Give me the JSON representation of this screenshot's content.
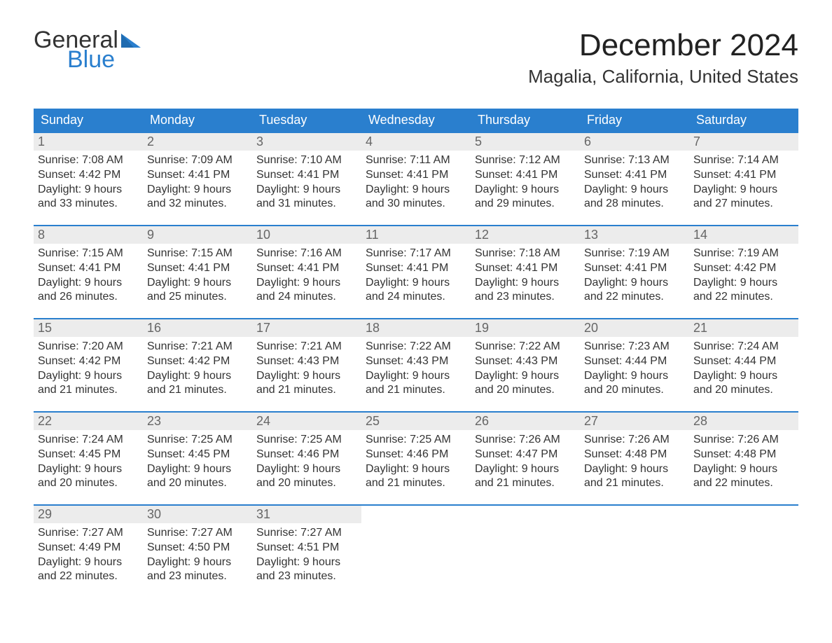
{
  "logo": {
    "text_top": "General",
    "text_bottom": "Blue",
    "accent_color": "#2a7fce"
  },
  "title": "December 2024",
  "location": "Magalia, California, United States",
  "colors": {
    "header_bg": "#2a7fce",
    "header_text": "#ffffff",
    "daynum_bg": "#ececec",
    "daynum_text": "#666666",
    "body_text": "#333333",
    "week_border": "#2a7fce",
    "background": "#ffffff"
  },
  "typography": {
    "title_fontsize": 44,
    "location_fontsize": 26,
    "weekday_fontsize": 18,
    "daynum_fontsize": 18,
    "cell_fontsize": 16,
    "logo_fontsize": 34
  },
  "weekdays": [
    "Sunday",
    "Monday",
    "Tuesday",
    "Wednesday",
    "Thursday",
    "Friday",
    "Saturday"
  ],
  "weeks": [
    [
      {
        "day": "1",
        "sunrise": "Sunrise: 7:08 AM",
        "sunset": "Sunset: 4:42 PM",
        "dl1": "Daylight: 9 hours",
        "dl2": "and 33 minutes."
      },
      {
        "day": "2",
        "sunrise": "Sunrise: 7:09 AM",
        "sunset": "Sunset: 4:41 PM",
        "dl1": "Daylight: 9 hours",
        "dl2": "and 32 minutes."
      },
      {
        "day": "3",
        "sunrise": "Sunrise: 7:10 AM",
        "sunset": "Sunset: 4:41 PM",
        "dl1": "Daylight: 9 hours",
        "dl2": "and 31 minutes."
      },
      {
        "day": "4",
        "sunrise": "Sunrise: 7:11 AM",
        "sunset": "Sunset: 4:41 PM",
        "dl1": "Daylight: 9 hours",
        "dl2": "and 30 minutes."
      },
      {
        "day": "5",
        "sunrise": "Sunrise: 7:12 AM",
        "sunset": "Sunset: 4:41 PM",
        "dl1": "Daylight: 9 hours",
        "dl2": "and 29 minutes."
      },
      {
        "day": "6",
        "sunrise": "Sunrise: 7:13 AM",
        "sunset": "Sunset: 4:41 PM",
        "dl1": "Daylight: 9 hours",
        "dl2": "and 28 minutes."
      },
      {
        "day": "7",
        "sunrise": "Sunrise: 7:14 AM",
        "sunset": "Sunset: 4:41 PM",
        "dl1": "Daylight: 9 hours",
        "dl2": "and 27 minutes."
      }
    ],
    [
      {
        "day": "8",
        "sunrise": "Sunrise: 7:15 AM",
        "sunset": "Sunset: 4:41 PM",
        "dl1": "Daylight: 9 hours",
        "dl2": "and 26 minutes."
      },
      {
        "day": "9",
        "sunrise": "Sunrise: 7:15 AM",
        "sunset": "Sunset: 4:41 PM",
        "dl1": "Daylight: 9 hours",
        "dl2": "and 25 minutes."
      },
      {
        "day": "10",
        "sunrise": "Sunrise: 7:16 AM",
        "sunset": "Sunset: 4:41 PM",
        "dl1": "Daylight: 9 hours",
        "dl2": "and 24 minutes."
      },
      {
        "day": "11",
        "sunrise": "Sunrise: 7:17 AM",
        "sunset": "Sunset: 4:41 PM",
        "dl1": "Daylight: 9 hours",
        "dl2": "and 24 minutes."
      },
      {
        "day": "12",
        "sunrise": "Sunrise: 7:18 AM",
        "sunset": "Sunset: 4:41 PM",
        "dl1": "Daylight: 9 hours",
        "dl2": "and 23 minutes."
      },
      {
        "day": "13",
        "sunrise": "Sunrise: 7:19 AM",
        "sunset": "Sunset: 4:41 PM",
        "dl1": "Daylight: 9 hours",
        "dl2": "and 22 minutes."
      },
      {
        "day": "14",
        "sunrise": "Sunrise: 7:19 AM",
        "sunset": "Sunset: 4:42 PM",
        "dl1": "Daylight: 9 hours",
        "dl2": "and 22 minutes."
      }
    ],
    [
      {
        "day": "15",
        "sunrise": "Sunrise: 7:20 AM",
        "sunset": "Sunset: 4:42 PM",
        "dl1": "Daylight: 9 hours",
        "dl2": "and 21 minutes."
      },
      {
        "day": "16",
        "sunrise": "Sunrise: 7:21 AM",
        "sunset": "Sunset: 4:42 PM",
        "dl1": "Daylight: 9 hours",
        "dl2": "and 21 minutes."
      },
      {
        "day": "17",
        "sunrise": "Sunrise: 7:21 AM",
        "sunset": "Sunset: 4:43 PM",
        "dl1": "Daylight: 9 hours",
        "dl2": "and 21 minutes."
      },
      {
        "day": "18",
        "sunrise": "Sunrise: 7:22 AM",
        "sunset": "Sunset: 4:43 PM",
        "dl1": "Daylight: 9 hours",
        "dl2": "and 21 minutes."
      },
      {
        "day": "19",
        "sunrise": "Sunrise: 7:22 AM",
        "sunset": "Sunset: 4:43 PM",
        "dl1": "Daylight: 9 hours",
        "dl2": "and 20 minutes."
      },
      {
        "day": "20",
        "sunrise": "Sunrise: 7:23 AM",
        "sunset": "Sunset: 4:44 PM",
        "dl1": "Daylight: 9 hours",
        "dl2": "and 20 minutes."
      },
      {
        "day": "21",
        "sunrise": "Sunrise: 7:24 AM",
        "sunset": "Sunset: 4:44 PM",
        "dl1": "Daylight: 9 hours",
        "dl2": "and 20 minutes."
      }
    ],
    [
      {
        "day": "22",
        "sunrise": "Sunrise: 7:24 AM",
        "sunset": "Sunset: 4:45 PM",
        "dl1": "Daylight: 9 hours",
        "dl2": "and 20 minutes."
      },
      {
        "day": "23",
        "sunrise": "Sunrise: 7:25 AM",
        "sunset": "Sunset: 4:45 PM",
        "dl1": "Daylight: 9 hours",
        "dl2": "and 20 minutes."
      },
      {
        "day": "24",
        "sunrise": "Sunrise: 7:25 AM",
        "sunset": "Sunset: 4:46 PM",
        "dl1": "Daylight: 9 hours",
        "dl2": "and 20 minutes."
      },
      {
        "day": "25",
        "sunrise": "Sunrise: 7:25 AM",
        "sunset": "Sunset: 4:46 PM",
        "dl1": "Daylight: 9 hours",
        "dl2": "and 21 minutes."
      },
      {
        "day": "26",
        "sunrise": "Sunrise: 7:26 AM",
        "sunset": "Sunset: 4:47 PM",
        "dl1": "Daylight: 9 hours",
        "dl2": "and 21 minutes."
      },
      {
        "day": "27",
        "sunrise": "Sunrise: 7:26 AM",
        "sunset": "Sunset: 4:48 PM",
        "dl1": "Daylight: 9 hours",
        "dl2": "and 21 minutes."
      },
      {
        "day": "28",
        "sunrise": "Sunrise: 7:26 AM",
        "sunset": "Sunset: 4:48 PM",
        "dl1": "Daylight: 9 hours",
        "dl2": "and 22 minutes."
      }
    ],
    [
      {
        "day": "29",
        "sunrise": "Sunrise: 7:27 AM",
        "sunset": "Sunset: 4:49 PM",
        "dl1": "Daylight: 9 hours",
        "dl2": "and 22 minutes."
      },
      {
        "day": "30",
        "sunrise": "Sunrise: 7:27 AM",
        "sunset": "Sunset: 4:50 PM",
        "dl1": "Daylight: 9 hours",
        "dl2": "and 23 minutes."
      },
      {
        "day": "31",
        "sunrise": "Sunrise: 7:27 AM",
        "sunset": "Sunset: 4:51 PM",
        "dl1": "Daylight: 9 hours",
        "dl2": "and 23 minutes."
      },
      {
        "day": "",
        "sunrise": "",
        "sunset": "",
        "dl1": "",
        "dl2": ""
      },
      {
        "day": "",
        "sunrise": "",
        "sunset": "",
        "dl1": "",
        "dl2": ""
      },
      {
        "day": "",
        "sunrise": "",
        "sunset": "",
        "dl1": "",
        "dl2": ""
      },
      {
        "day": "",
        "sunrise": "",
        "sunset": "",
        "dl1": "",
        "dl2": ""
      }
    ]
  ]
}
